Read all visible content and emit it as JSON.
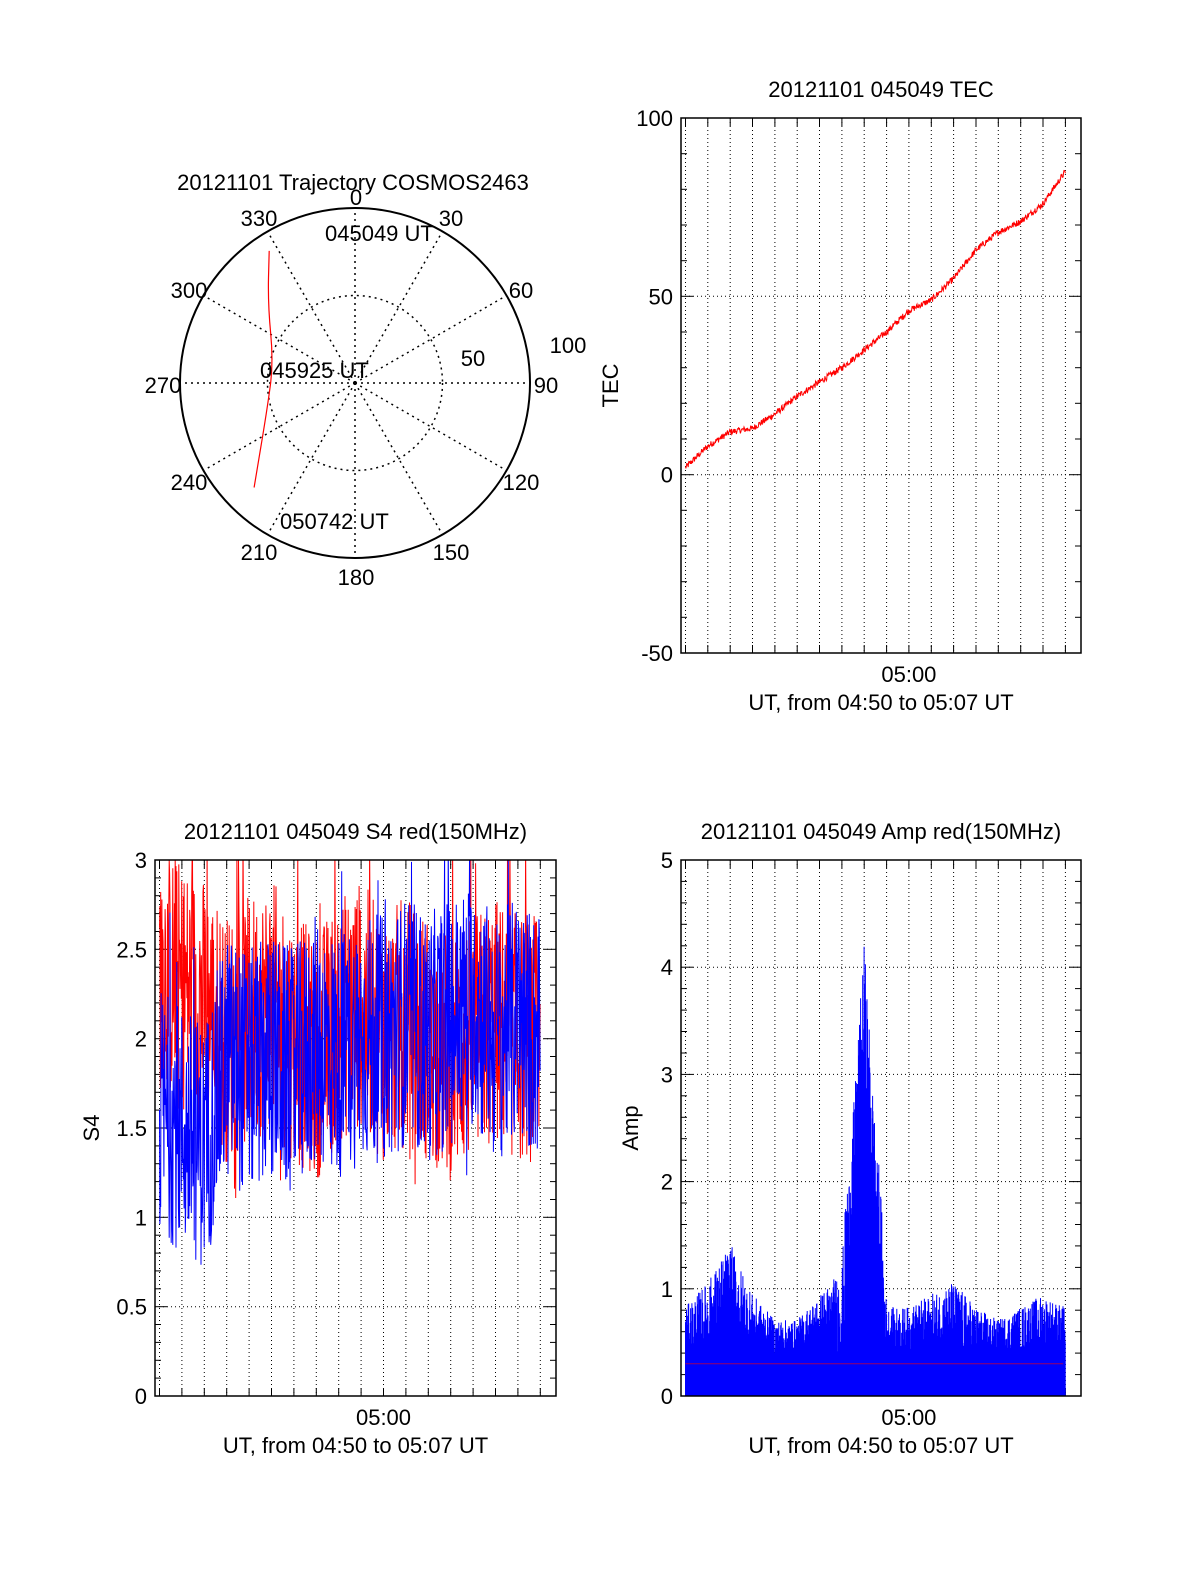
{
  "colors": {
    "red": "#ff0000",
    "blue": "#0000ff",
    "axis": "#000000",
    "grid": "#000000"
  },
  "chart_data": [
    {
      "id": "trajectory",
      "type": "polar",
      "title": "20121101 Trajectory COSMOS2463",
      "grid": true,
      "radial_range": [
        0,
        100
      ],
      "radial_labels": [
        "50",
        "100"
      ],
      "angle_labels": [
        "0",
        "30",
        "60",
        "90",
        "120",
        "150",
        "180",
        "210",
        "240",
        "270",
        "300",
        "330"
      ],
      "track": {
        "color": "#ff0000",
        "points": [
          [
            327,
            90
          ],
          [
            312,
            67
          ],
          [
            284,
            48
          ],
          [
            252,
            53
          ],
          [
            224,
            83
          ]
        ]
      },
      "annotations": [
        "045049 UT",
        "045925 UT",
        "050742 UT"
      ]
    },
    {
      "id": "tec",
      "type": "line",
      "title": "20121101 045049 TEC",
      "xlabel": "UT, from 04:50 to 05:07 UT",
      "ylabel": "TEC",
      "xlim": [
        "04:49.8",
        "05:07.7"
      ],
      "ylim": [
        -50,
        100
      ],
      "yticks": [
        "-50",
        "0",
        "50",
        "100"
      ],
      "xticks": [
        "05:00"
      ],
      "grid": true,
      "series": [
        {
          "color": "#ff0000",
          "x": [
            "04:50",
            "04:51",
            "04:52",
            "04:53",
            "04:54",
            "04:55",
            "04:56",
            "04:57",
            "04:58",
            "04:59",
            "05:00",
            "05:01",
            "05:02",
            "05:03",
            "05:04",
            "05:05",
            "05:06",
            "05:07"
          ],
          "values": [
            2,
            8,
            12,
            13,
            17,
            22,
            26,
            30,
            35,
            40,
            46,
            49,
            55,
            63,
            68,
            71,
            76,
            85
          ]
        }
      ]
    },
    {
      "id": "s4",
      "type": "line",
      "title": "20121101 045049 S4 red(150MHz)",
      "xlabel": "UT, from 04:50 to 05:07 UT",
      "ylabel": "S4",
      "xlim": [
        "04:49.8",
        "05:07.7"
      ],
      "ylim": [
        0,
        3
      ],
      "yticks": [
        "0",
        "0.5",
        "1",
        "1.5",
        "2",
        "2.5",
        "3"
      ],
      "xticks": [
        "05:00"
      ],
      "grid": true,
      "series": [
        {
          "color": "#ff0000",
          "x": [
            "04:50",
            "04:51",
            "04:52",
            "04:53",
            "04:54",
            "04:55",
            "04:56",
            "04:57",
            "04:58",
            "04:59",
            "05:00",
            "05:01",
            "05:02",
            "05:03",
            "05:04",
            "05:05",
            "05:06",
            "05:07"
          ],
          "values": [
            2.4,
            2.3,
            2.2,
            2.0,
            2.1,
            2.2,
            2.0,
            1.9,
            2.1,
            2.2,
            2.0,
            2.1,
            2.0,
            1.9,
            2.0,
            2.1,
            2.0,
            2.0
          ]
        },
        {
          "color": "#0000ff",
          "x": [
            "04:50",
            "04:51",
            "04:52",
            "04:53",
            "04:54",
            "04:55",
            "04:56",
            "04:57",
            "04:58",
            "04:59",
            "05:00",
            "05:01",
            "05:02",
            "05:03",
            "05:04",
            "05:05",
            "05:06",
            "05:07"
          ],
          "values": [
            1.6,
            1.5,
            1.4,
            1.9,
            1.8,
            1.9,
            1.8,
            2.0,
            1.9,
            2.0,
            2.0,
            2.1,
            2.0,
            2.1,
            2.2,
            2.0,
            2.1,
            2.0
          ]
        }
      ]
    },
    {
      "id": "amp",
      "type": "line",
      "title": "20121101 045049 Amp red(150MHz)",
      "xlabel": "UT, from 04:50 to 05:07 UT",
      "ylabel": "Amp",
      "xlim": [
        "04:49.8",
        "05:07.7"
      ],
      "ylim": [
        0,
        5
      ],
      "yticks": [
        "0",
        "1",
        "2",
        "3",
        "4",
        "5"
      ],
      "xticks": [
        "05:00"
      ],
      "grid": true,
      "series": [
        {
          "color": "#ff0000",
          "x": [
            "04:50",
            "04:52",
            "04:54",
            "04:56",
            "04:58",
            "05:00",
            "05:02",
            "05:04",
            "05:06",
            "05:07"
          ],
          "values": [
            0.3,
            0.3,
            0.3,
            0.3,
            0.3,
            0.3,
            0.3,
            0.3,
            0.3,
            0.3
          ]
        },
        {
          "color": "#0000ff",
          "x": [
            "04:50",
            "04:51",
            "04:52",
            "04:53",
            "04:54",
            "04:55",
            "04:56",
            "04:57",
            "04:58",
            "04:59",
            "05:00",
            "05:01",
            "05:02",
            "05:03",
            "05:04",
            "05:05",
            "05:06",
            "05:07"
          ],
          "values": [
            0.7,
            0.9,
            1.2,
            0.8,
            0.6,
            0.6,
            0.8,
            1.0,
            4.25,
            0.7,
            0.7,
            0.8,
            0.9,
            0.7,
            0.6,
            0.7,
            0.8,
            0.7
          ]
        }
      ]
    }
  ]
}
